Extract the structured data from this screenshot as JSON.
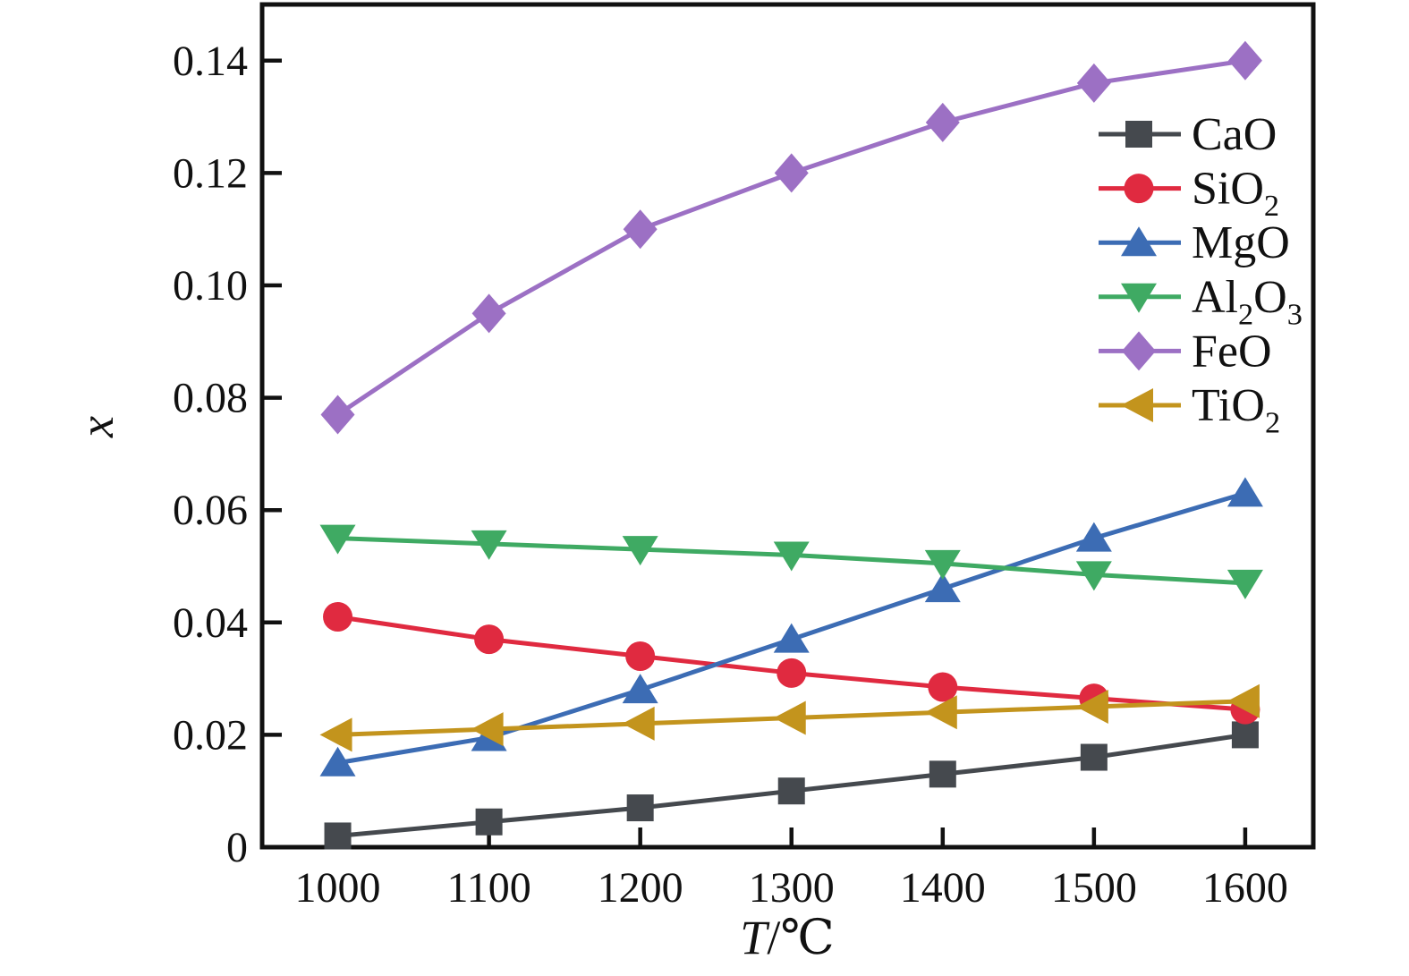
{
  "chart_data": {
    "type": "line",
    "title": "",
    "xlabel_parts": [
      {
        "text": "T",
        "italic": true
      },
      {
        "text": "/℃",
        "italic": false
      }
    ],
    "ylabel_parts": [
      {
        "text": "x",
        "italic": true
      }
    ],
    "x": [
      1000,
      1100,
      1200,
      1300,
      1400,
      1500,
      1600
    ],
    "xlim": [
      950,
      1645
    ],
    "ylim": [
      0,
      0.15
    ],
    "xticks": [
      1000,
      1100,
      1200,
      1300,
      1400,
      1500,
      1600
    ],
    "xtick_labels": [
      "1000",
      "1100",
      "1200",
      "1300",
      "1400",
      "1500",
      "1600"
    ],
    "ytick_values": [
      0,
      0.02,
      0.04,
      0.06,
      0.08,
      0.1,
      0.12,
      0.14
    ],
    "ytick_labels": [
      "0",
      "0.02",
      "0.04",
      "0.06",
      "0.08",
      "0.10",
      "0.12",
      "0.14"
    ],
    "grid": false,
    "legend_position": "upper right",
    "axis_color": "#111111",
    "series": [
      {
        "name": "CaO",
        "label_parts": [
          {
            "text": "CaO"
          }
        ],
        "color": "#45494e",
        "marker": "square",
        "values": [
          0.002,
          0.0045,
          0.007,
          0.01,
          0.013,
          0.016,
          0.02
        ]
      },
      {
        "name": "SiO2",
        "label_parts": [
          {
            "text": "SiO"
          },
          {
            "text": "2",
            "sub": true
          }
        ],
        "color": "#e02a40",
        "marker": "circle",
        "values": [
          0.041,
          0.037,
          0.034,
          0.031,
          0.0285,
          0.0265,
          0.0245
        ]
      },
      {
        "name": "MgO",
        "label_parts": [
          {
            "text": "MgO"
          }
        ],
        "color": "#3c6cb4",
        "marker": "triangle-up",
        "values": [
          0.015,
          0.0195,
          0.028,
          0.037,
          0.046,
          0.055,
          0.063
        ]
      },
      {
        "name": "Al2O3",
        "label_parts": [
          {
            "text": "Al"
          },
          {
            "text": "2",
            "sub": true
          },
          {
            "text": "O"
          },
          {
            "text": "3",
            "sub": true
          }
        ],
        "color": "#3faa63",
        "marker": "triangle-down",
        "values": [
          0.055,
          0.054,
          0.053,
          0.052,
          0.0505,
          0.0485,
          0.047
        ]
      },
      {
        "name": "FeO",
        "label_parts": [
          {
            "text": "FeO"
          }
        ],
        "color": "#9c70c4",
        "marker": "diamond",
        "values": [
          0.077,
          0.095,
          0.11,
          0.12,
          0.129,
          0.136,
          0.14
        ]
      },
      {
        "name": "TiO2",
        "label_parts": [
          {
            "text": "TiO"
          },
          {
            "text": "2",
            "sub": true
          }
        ],
        "color": "#c3941d",
        "marker": "triangle-left",
        "values": [
          0.02,
          0.021,
          0.022,
          0.023,
          0.024,
          0.025,
          0.026
        ]
      }
    ]
  }
}
